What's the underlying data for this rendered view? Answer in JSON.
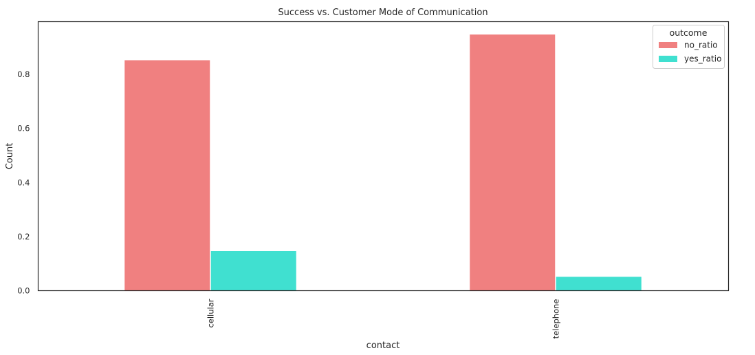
{
  "chart_data": {
    "type": "bar",
    "title": "Success vs. Customer Mode of Communication",
    "xlabel": "contact",
    "ylabel": "Count",
    "categories": [
      "cellular",
      "telephone"
    ],
    "series": [
      {
        "name": "no_ratio",
        "values": [
          0.853,
          0.948
        ],
        "color": "#f08080"
      },
      {
        "name": "yes_ratio",
        "values": [
          0.147,
          0.052
        ],
        "color": "#40e0d0"
      }
    ],
    "ylim": [
      0,
      0.995
    ],
    "yticks": [
      "0.0",
      "0.2",
      "0.4",
      "0.6",
      "0.8"
    ],
    "ytick_values": [
      0,
      0.2,
      0.4,
      0.6,
      0.8
    ],
    "legend": {
      "title": "outcome",
      "position": "top-right"
    },
    "grid": false
  }
}
